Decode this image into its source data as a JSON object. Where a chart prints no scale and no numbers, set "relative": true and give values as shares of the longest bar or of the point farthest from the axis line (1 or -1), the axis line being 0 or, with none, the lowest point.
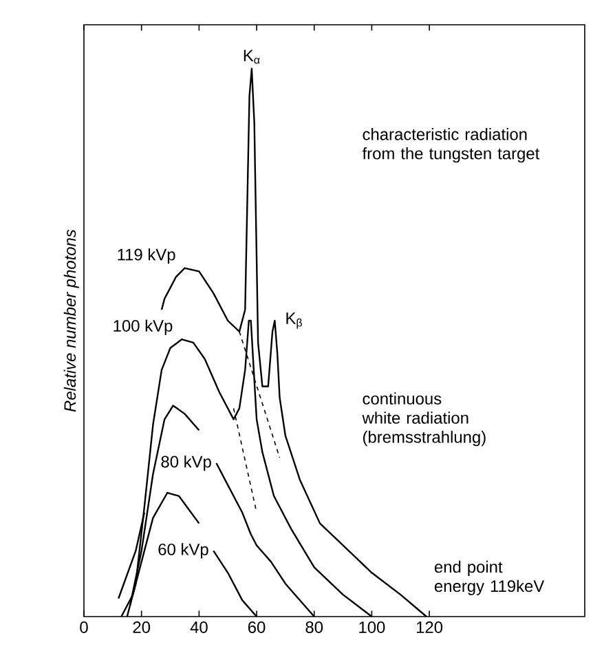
{
  "chart_data": {
    "type": "line",
    "relative": true,
    "ylabel": "Relative number photons",
    "xlim": [
      0,
      174
    ],
    "xticks": [
      0,
      20,
      40,
      60,
      80,
      100,
      120
    ],
    "series": [
      {
        "name": "119 kVp",
        "color": "#000000",
        "x": [
          12,
          18,
          21,
          23,
          27,
          28,
          32,
          35,
          40,
          45,
          50,
          54,
          56,
          57.5,
          58.3,
          59.2,
          60.5,
          62,
          64,
          65.5,
          66.3,
          67.2,
          68,
          70,
          75,
          82,
          90,
          100,
          110,
          119
        ],
        "values": [
          0.033,
          0.12,
          0.19,
          null,
          0.56,
          0.58,
          0.62,
          0.636,
          0.63,
          0.59,
          0.54,
          0.52,
          0.56,
          0.95,
          1.0,
          0.9,
          0.5,
          0.42,
          0.42,
          0.52,
          0.54,
          0.48,
          0.4,
          0.33,
          0.25,
          0.17,
          0.13,
          0.08,
          0.04,
          0
        ]
      },
      {
        "name": "100 kVp",
        "color": "#000000",
        "x": [
          15,
          18,
          21,
          24,
          27,
          30,
          34,
          38,
          42,
          47,
          52,
          54,
          56,
          57.3,
          58,
          59,
          60,
          62,
          66,
          72,
          80,
          90,
          100
        ],
        "values": [
          0.0,
          0.06,
          0.2,
          0.35,
          0.45,
          0.49,
          0.506,
          0.5,
          0.47,
          0.41,
          0.36,
          0.38,
          0.45,
          0.54,
          0.54,
          0.45,
          0.36,
          0.3,
          0.22,
          0.16,
          0.09,
          0.04,
          0
        ]
      },
      {
        "name": "80 kVp",
        "color": "#000000",
        "x": [
          16,
          20,
          24,
          28,
          31,
          35,
          40,
          43,
          46,
          50,
          55,
          58,
          60,
          65,
          70,
          75,
          80
        ],
        "values": [
          0.02,
          0.12,
          0.26,
          0.36,
          0.385,
          0.37,
          0.34,
          null,
          0.28,
          0.24,
          0.19,
          0.15,
          0.13,
          0.1,
          0.06,
          0.03,
          0
        ]
      },
      {
        "name": "60 kVp",
        "color": "#000000",
        "x": [
          13,
          17,
          20,
          24,
          29,
          33,
          40,
          42,
          45,
          50,
          55,
          60
        ],
        "values": [
          0,
          0.04,
          0.1,
          0.18,
          0.226,
          0.22,
          0.17,
          null,
          0.12,
          0.08,
          0.03,
          0
        ]
      },
      {
        "color": "#000000",
        "line_style": "dashed",
        "x": [
          54,
          68
        ],
        "values": [
          0.52,
          0.29
        ]
      },
      {
        "color": "#000000",
        "line_style": "dashed",
        "x": [
          52,
          60
        ],
        "values": [
          0.38,
          0.19
        ]
      }
    ],
    "annotations": [
      {
        "text": "K$_{α}$",
        "x": 58.3,
        "y": 1.0
      },
      {
        "text": "K$_{β}$",
        "x": 66.3,
        "y": 0.54
      },
      "characteristic radiation from the tungsten target",
      "continuous white radiation (bremsstrahlung)",
      {
        "text": "end point energy 119keV",
        "x": 119,
        "y": 0
      }
    ]
  }
}
